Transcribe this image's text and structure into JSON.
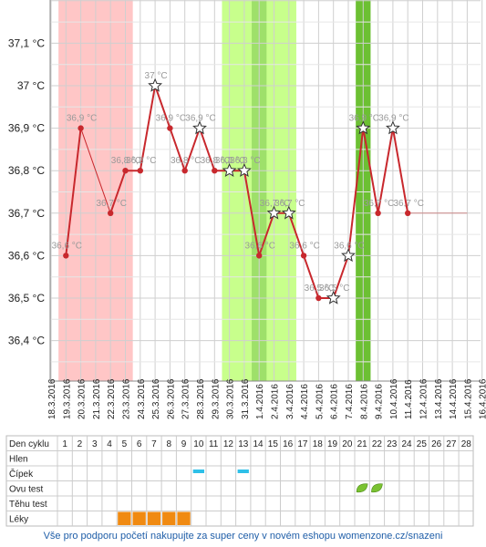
{
  "chart_data": {
    "type": "line",
    "y_unit": "°C",
    "ylim": [
      36.3,
      37.2
    ],
    "y_ticks": [
      "36,4 °C",
      "36,5 °C",
      "36,6 °C",
      "36,7 °C",
      "36,8 °C",
      "36,9 °C",
      "37 °C",
      "37,1 °C"
    ],
    "dates": [
      "18.3.2016",
      "19.3.2016",
      "20.3.2016",
      "21.3.2016",
      "22.3.2016",
      "23.3.2016",
      "24.3.2016",
      "25.3.2016",
      "26.3.2016",
      "27.3.2016",
      "28.3.2016",
      "29.3.2016",
      "30.3.2016",
      "31.3.2016",
      "1.4.2016",
      "2.4.2016",
      "3.4.2016",
      "4.4.2016",
      "5.4.2016",
      "6.4.2016",
      "7.4.2016",
      "8.4.2016",
      "9.4.2016",
      "10.4.2016",
      "11.4.2016",
      "12.4.2016",
      "13.4.2016",
      "14.4.2016",
      "15.4.2016",
      "16.4.2016"
    ],
    "series": [
      {
        "values": [
          null,
          36.6,
          36.9,
          null,
          36.7,
          36.8,
          36.8,
          37.0,
          36.9,
          36.8,
          36.9,
          36.8,
          36.8,
          36.8,
          36.6,
          36.7,
          36.7,
          36.6,
          36.5,
          36.5,
          36.6,
          36.9,
          36.7,
          36.9,
          36.7,
          null,
          null,
          null,
          null,
          null
        ],
        "labels": [
          "",
          "36,6 °C",
          "36,9 °C",
          "",
          "36,7 °C",
          "36,8 °C",
          "36,8 °C",
          "37 °C",
          "36,9 °C",
          "36,8 °C",
          "36,9 °C",
          "36,8 °C",
          "36,8 °C",
          "36,8 °C",
          "36,6 °C",
          "36,7 °C",
          "36,7 °C",
          "36,6 °C",
          "36,5 °C",
          "36,5 °C",
          "36,6 °C",
          "36,9 °C",
          "36,7 °C",
          "36,9 °C",
          "36,7 °C",
          "",
          "",
          "",
          "",
          ""
        ],
        "star_marker": [
          false,
          false,
          false,
          false,
          false,
          false,
          false,
          true,
          false,
          false,
          true,
          false,
          true,
          true,
          false,
          true,
          true,
          false,
          false,
          true,
          true,
          true,
          false,
          true,
          false,
          false,
          false,
          false,
          false,
          false
        ]
      }
    ],
    "trend_to": "15.4.2016",
    "shaded_ranges": [
      {
        "from": "18.3.2016",
        "to": "23.3.2016",
        "color": "#ffc6c6"
      },
      {
        "from": "29.3.2016",
        "to": "3.4.2016",
        "color": "#c8ff8c"
      },
      {
        "from": "31.3.2016",
        "to": "1.4.2016",
        "color": "#9ee06a"
      },
      {
        "from": "7.4.2016",
        "to": "8.4.2016",
        "color": "#6cc033"
      }
    ],
    "line_color": "#c8282d",
    "grid": true
  },
  "table": {
    "row_labels": [
      "Den cyklu",
      "Hlen",
      "Čípek",
      "Ovu test",
      "Těhu test",
      "Léky"
    ],
    "cycle_days": [
      "1",
      "2",
      "3",
      "4",
      "5",
      "6",
      "7",
      "8",
      "9",
      "10",
      "11",
      "12",
      "13",
      "14",
      "15",
      "16",
      "17",
      "18",
      "19",
      "20",
      "21",
      "22",
      "23",
      "24",
      "25",
      "26",
      "27",
      "28"
    ],
    "cipek_days": [
      10,
      13
    ],
    "ovu_test_days": [
      21,
      22
    ],
    "leky_days": [
      5,
      6,
      7,
      8,
      9
    ],
    "colors": {
      "cipek": "#2ec0e8",
      "ovu": "#7ac231",
      "leky": "#f08a12"
    }
  },
  "footer": {
    "text": "Vše pro podporu početí nakupujte za super ceny v novém eshopu womenzone.cz/snazeni",
    "color": "#1f5ea8"
  }
}
